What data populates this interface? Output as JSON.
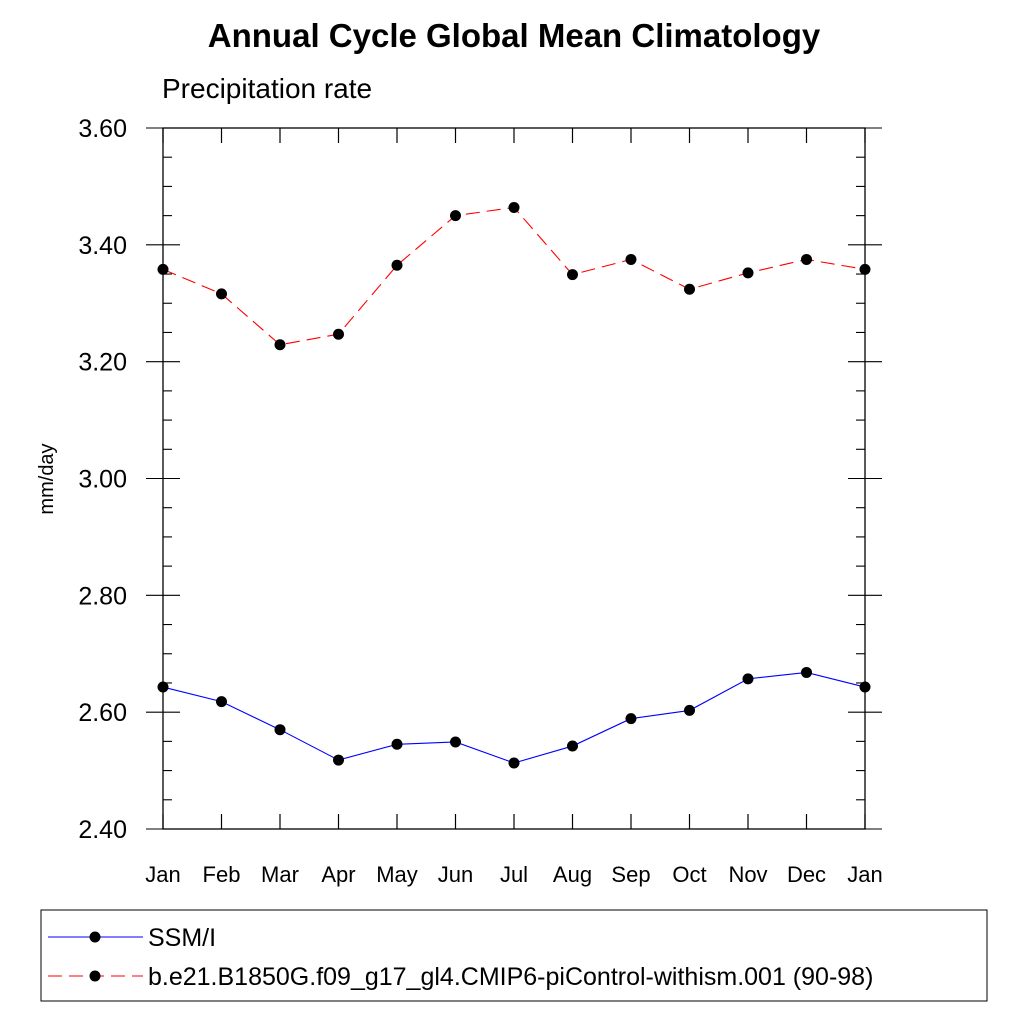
{
  "chart_data": {
    "type": "line",
    "title": "Annual Cycle Global Mean Climatology",
    "subtitle": "Precipitation rate",
    "ylabel": "mm/day",
    "xlabel": "",
    "categories": [
      "Jan",
      "Feb",
      "Mar",
      "Apr",
      "May",
      "Jun",
      "Jul",
      "Aug",
      "Sep",
      "Oct",
      "Nov",
      "Dec",
      "Jan"
    ],
    "ylim": [
      2.4,
      3.6
    ],
    "yticks": [
      "2.40",
      "2.60",
      "2.80",
      "3.00",
      "3.20",
      "3.40",
      "3.60"
    ],
    "grid": false,
    "legend_position": "bottom",
    "series": [
      {
        "name": "SSM/I",
        "color": "#0000ff",
        "line_style": "solid",
        "marker": "filled-circle",
        "values": [
          2.643,
          2.618,
          2.57,
          2.518,
          2.545,
          2.549,
          2.513,
          2.542,
          2.589,
          2.603,
          2.657,
          2.668,
          2.643
        ]
      },
      {
        "name": "b.e21.B1850G.f09_g17_gl4.CMIP6-piControl-withism.001 (90-98)",
        "color": "#ff0000",
        "line_style": "dashed",
        "marker": "filled-circle",
        "values": [
          3.358,
          3.316,
          3.229,
          3.247,
          3.365,
          3.45,
          3.464,
          3.349,
          3.375,
          3.324,
          3.352,
          3.375,
          3.358
        ]
      }
    ]
  }
}
